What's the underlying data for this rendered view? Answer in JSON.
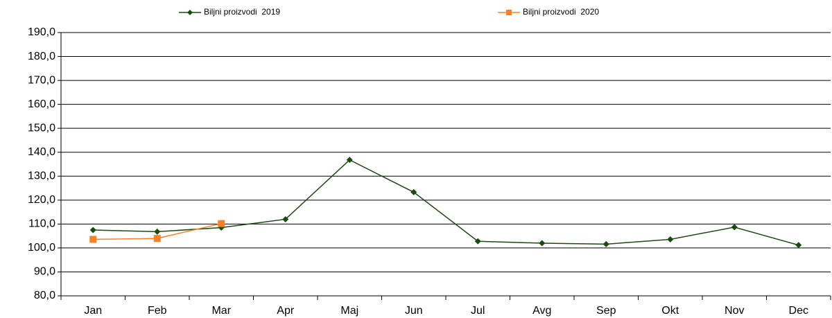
{
  "chart_data": {
    "type": "line",
    "categories": [
      "Jan",
      "Feb",
      "Mar",
      "Apr",
      "Maj",
      "Jun",
      "Jul",
      "Avg",
      "Sep",
      "Okt",
      "Nov",
      "Dec"
    ],
    "series": [
      {
        "name": "Biljni proizvodi  2019",
        "color": "#1a4a10",
        "marker": "diamond",
        "values": [
          107.5,
          106.8,
          108.5,
          112.0,
          136.8,
          123.3,
          102.8,
          102.0,
          101.6,
          103.6,
          108.7,
          101.2
        ]
      },
      {
        "name": "Biljni proizvodi  2020",
        "color": "#ff7f27",
        "marker": "square",
        "values": [
          103.6,
          104.0,
          110.2,
          null,
          null,
          null,
          null,
          null,
          null,
          null,
          null,
          null
        ]
      }
    ],
    "ylim": [
      80,
      190
    ],
    "yticks": [
      {
        "value": 80,
        "label": "80,0"
      },
      {
        "value": 90,
        "label": "90,0"
      },
      {
        "value": 100,
        "label": "100,0"
      },
      {
        "value": 110,
        "label": "110,0"
      },
      {
        "value": 120,
        "label": "120,0"
      },
      {
        "value": 130,
        "label": "130,0"
      },
      {
        "value": 140,
        "label": "140,0"
      },
      {
        "value": 150,
        "label": "150,0"
      },
      {
        "value": 160,
        "label": "160,0"
      },
      {
        "value": 170,
        "label": "170,0"
      },
      {
        "value": 180,
        "label": "180,0"
      },
      {
        "value": 190,
        "label": "190,0"
      }
    ],
    "grid": true,
    "legend": "top"
  }
}
